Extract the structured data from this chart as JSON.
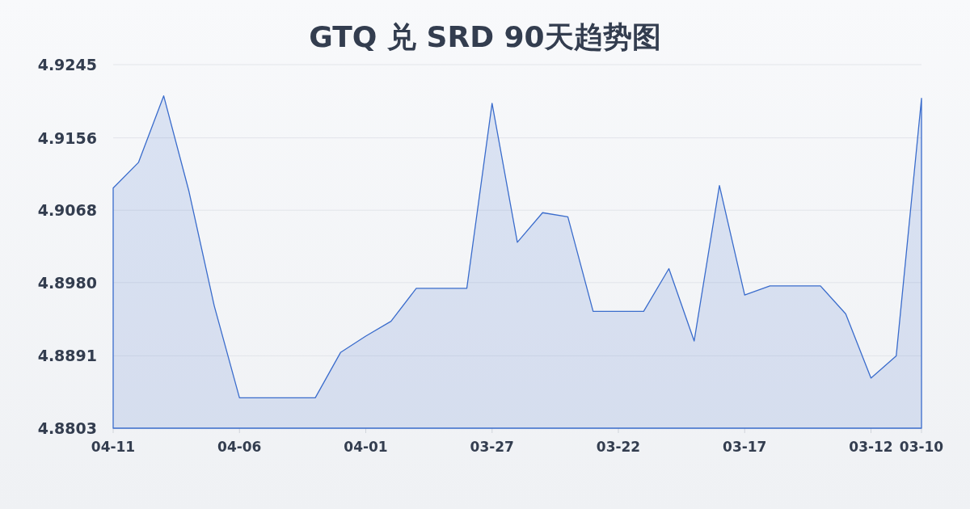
{
  "chart_data": {
    "type": "area",
    "title": "GTQ 兑 SRD 90天趋势图",
    "categories": [
      "04-11",
      null,
      null,
      null,
      null,
      "04-06",
      null,
      null,
      null,
      null,
      "04-01",
      null,
      null,
      null,
      null,
      "03-27",
      null,
      null,
      null,
      null,
      "03-22",
      null,
      null,
      null,
      null,
      "03-17",
      null,
      null,
      null,
      null,
      "03-12",
      null,
      "03-10"
    ],
    "values": [
      4.9095,
      4.9126,
      4.9207,
      4.9091,
      4.8952,
      4.884,
      4.884,
      4.884,
      4.884,
      4.8895,
      4.8915,
      4.8933,
      4.8973,
      4.8973,
      4.8973,
      4.9198,
      4.9029,
      4.9065,
      4.906,
      4.8945,
      4.8945,
      4.8945,
      4.8997,
      4.8909,
      4.9098,
      4.8965,
      4.8976,
      4.8976,
      4.8976,
      4.8942,
      4.8864,
      4.8891,
      4.9204
    ],
    "color": "#3a6ccc",
    "ylim": [
      4.8803,
      4.9245
    ],
    "yticks": [
      4.8803,
      4.8891,
      {
        "value": 4.898,
        "label": "4.8980"
      },
      4.9068,
      4.9156,
      4.9245
    ],
    "grid": "y"
  }
}
